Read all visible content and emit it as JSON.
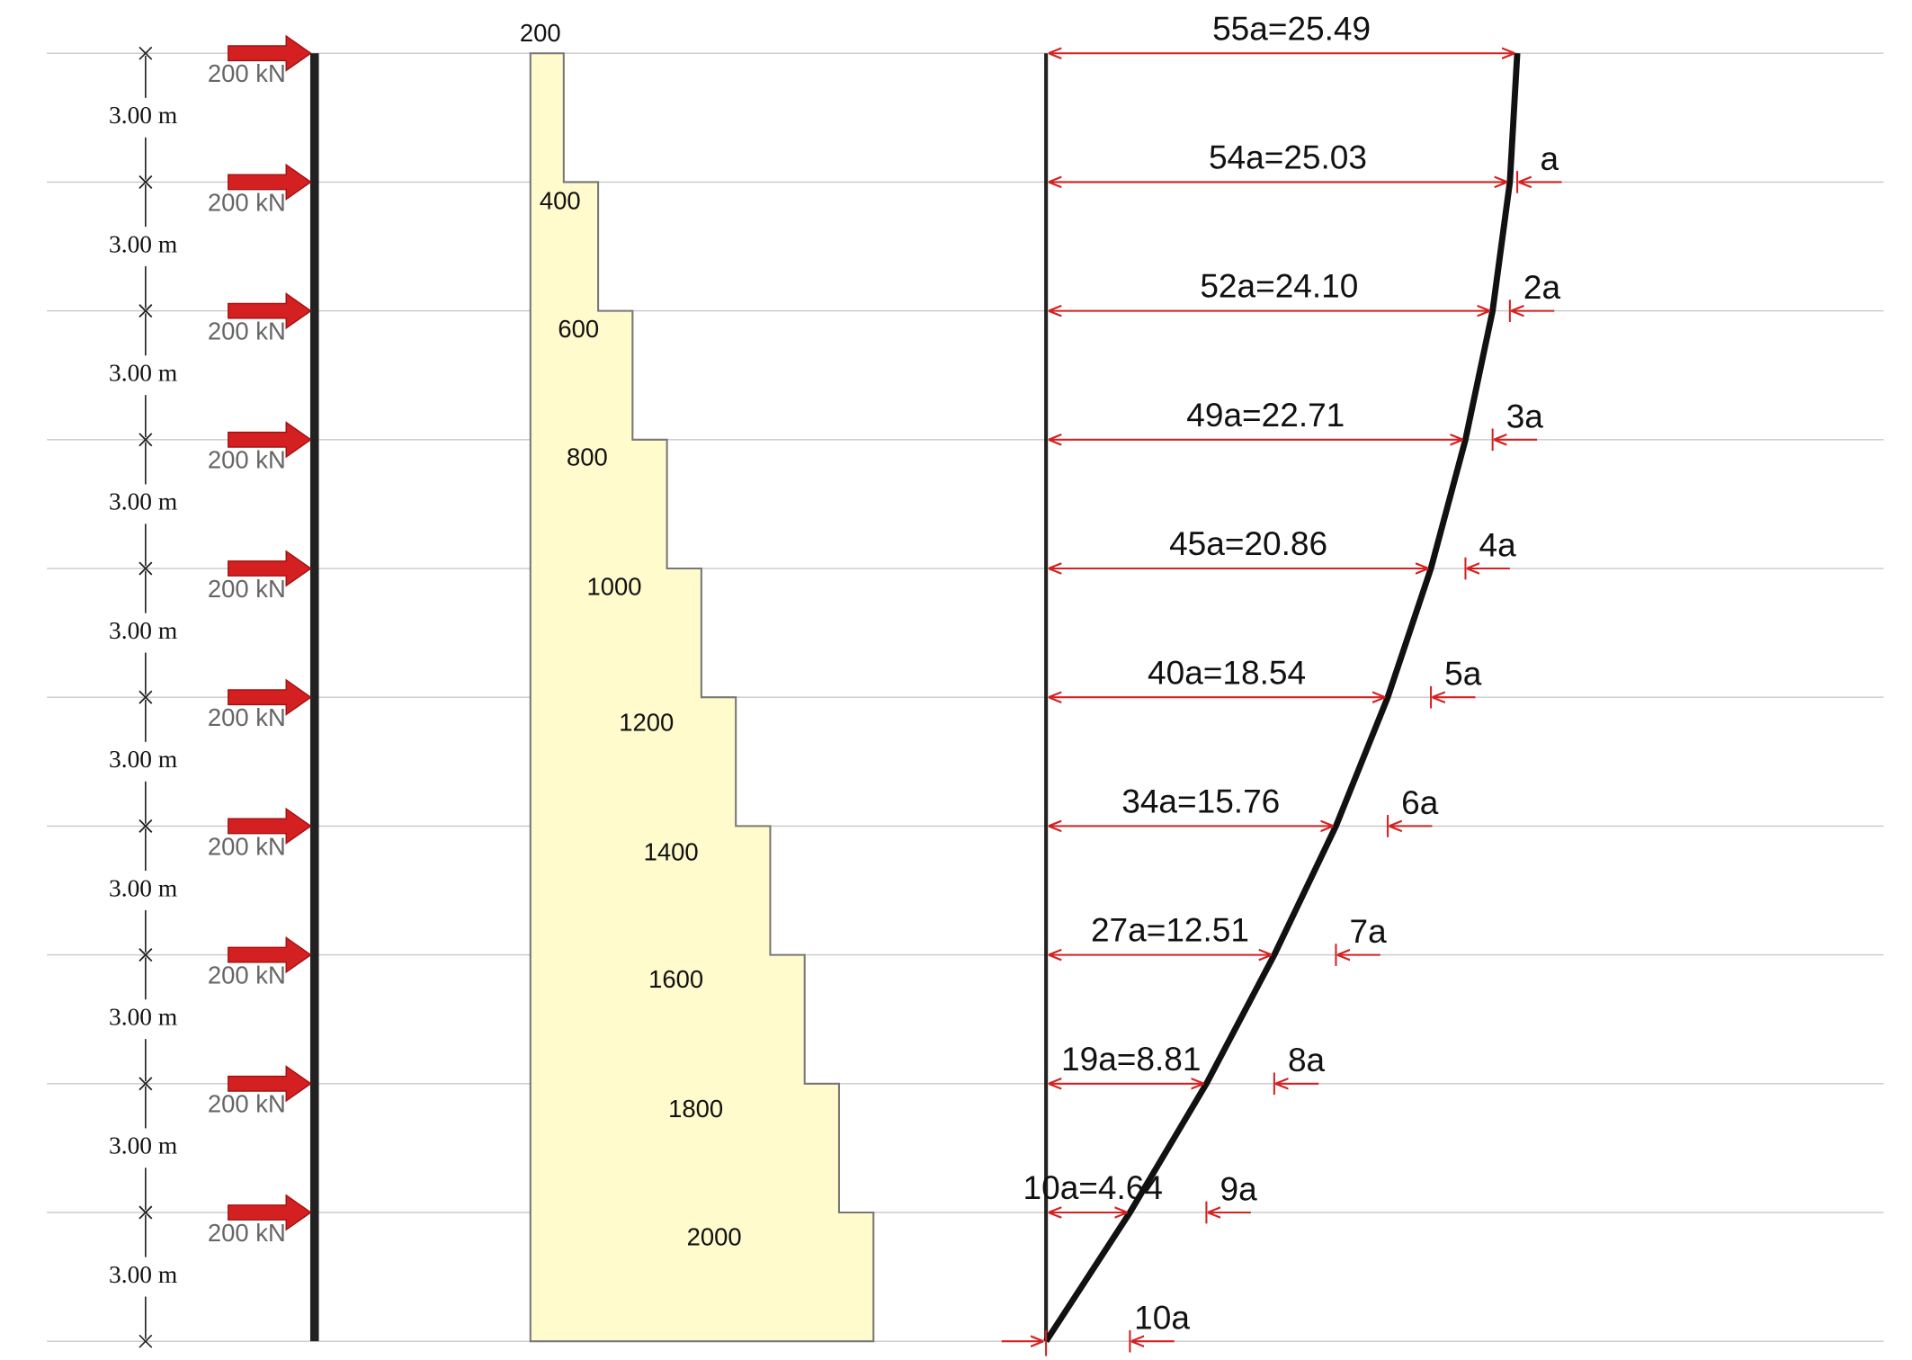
{
  "loads": [
    "200 kN",
    "200 kN",
    "200 kN",
    "200 kN",
    "200 kN",
    "200 kN",
    "200 kN",
    "200 kN",
    "200 kN",
    "200 kN"
  ],
  "story_heights": [
    "3.00 m",
    "3.00 m",
    "3.00 m",
    "3.00 m",
    "3.00 m",
    "3.00 m",
    "3.00 m",
    "3.00 m",
    "3.00 m",
    "3.00 m"
  ],
  "shear_labels": [
    "200",
    "400",
    "600",
    "800",
    "1000",
    "1200",
    "1400",
    "1600",
    "1800",
    "2000"
  ],
  "displacements": [
    "55a=25.49",
    "54a=25.03",
    "52a=24.10",
    "49a=22.71",
    "45a=20.86",
    "40a=18.54",
    "34a=15.76",
    "27a=12.51",
    "19a=8.81",
    "10a=4.64"
  ],
  "increments": [
    "a",
    "2a",
    "3a",
    "4a",
    "5a",
    "6a",
    "7a",
    "8a",
    "9a",
    "10a"
  ]
}
